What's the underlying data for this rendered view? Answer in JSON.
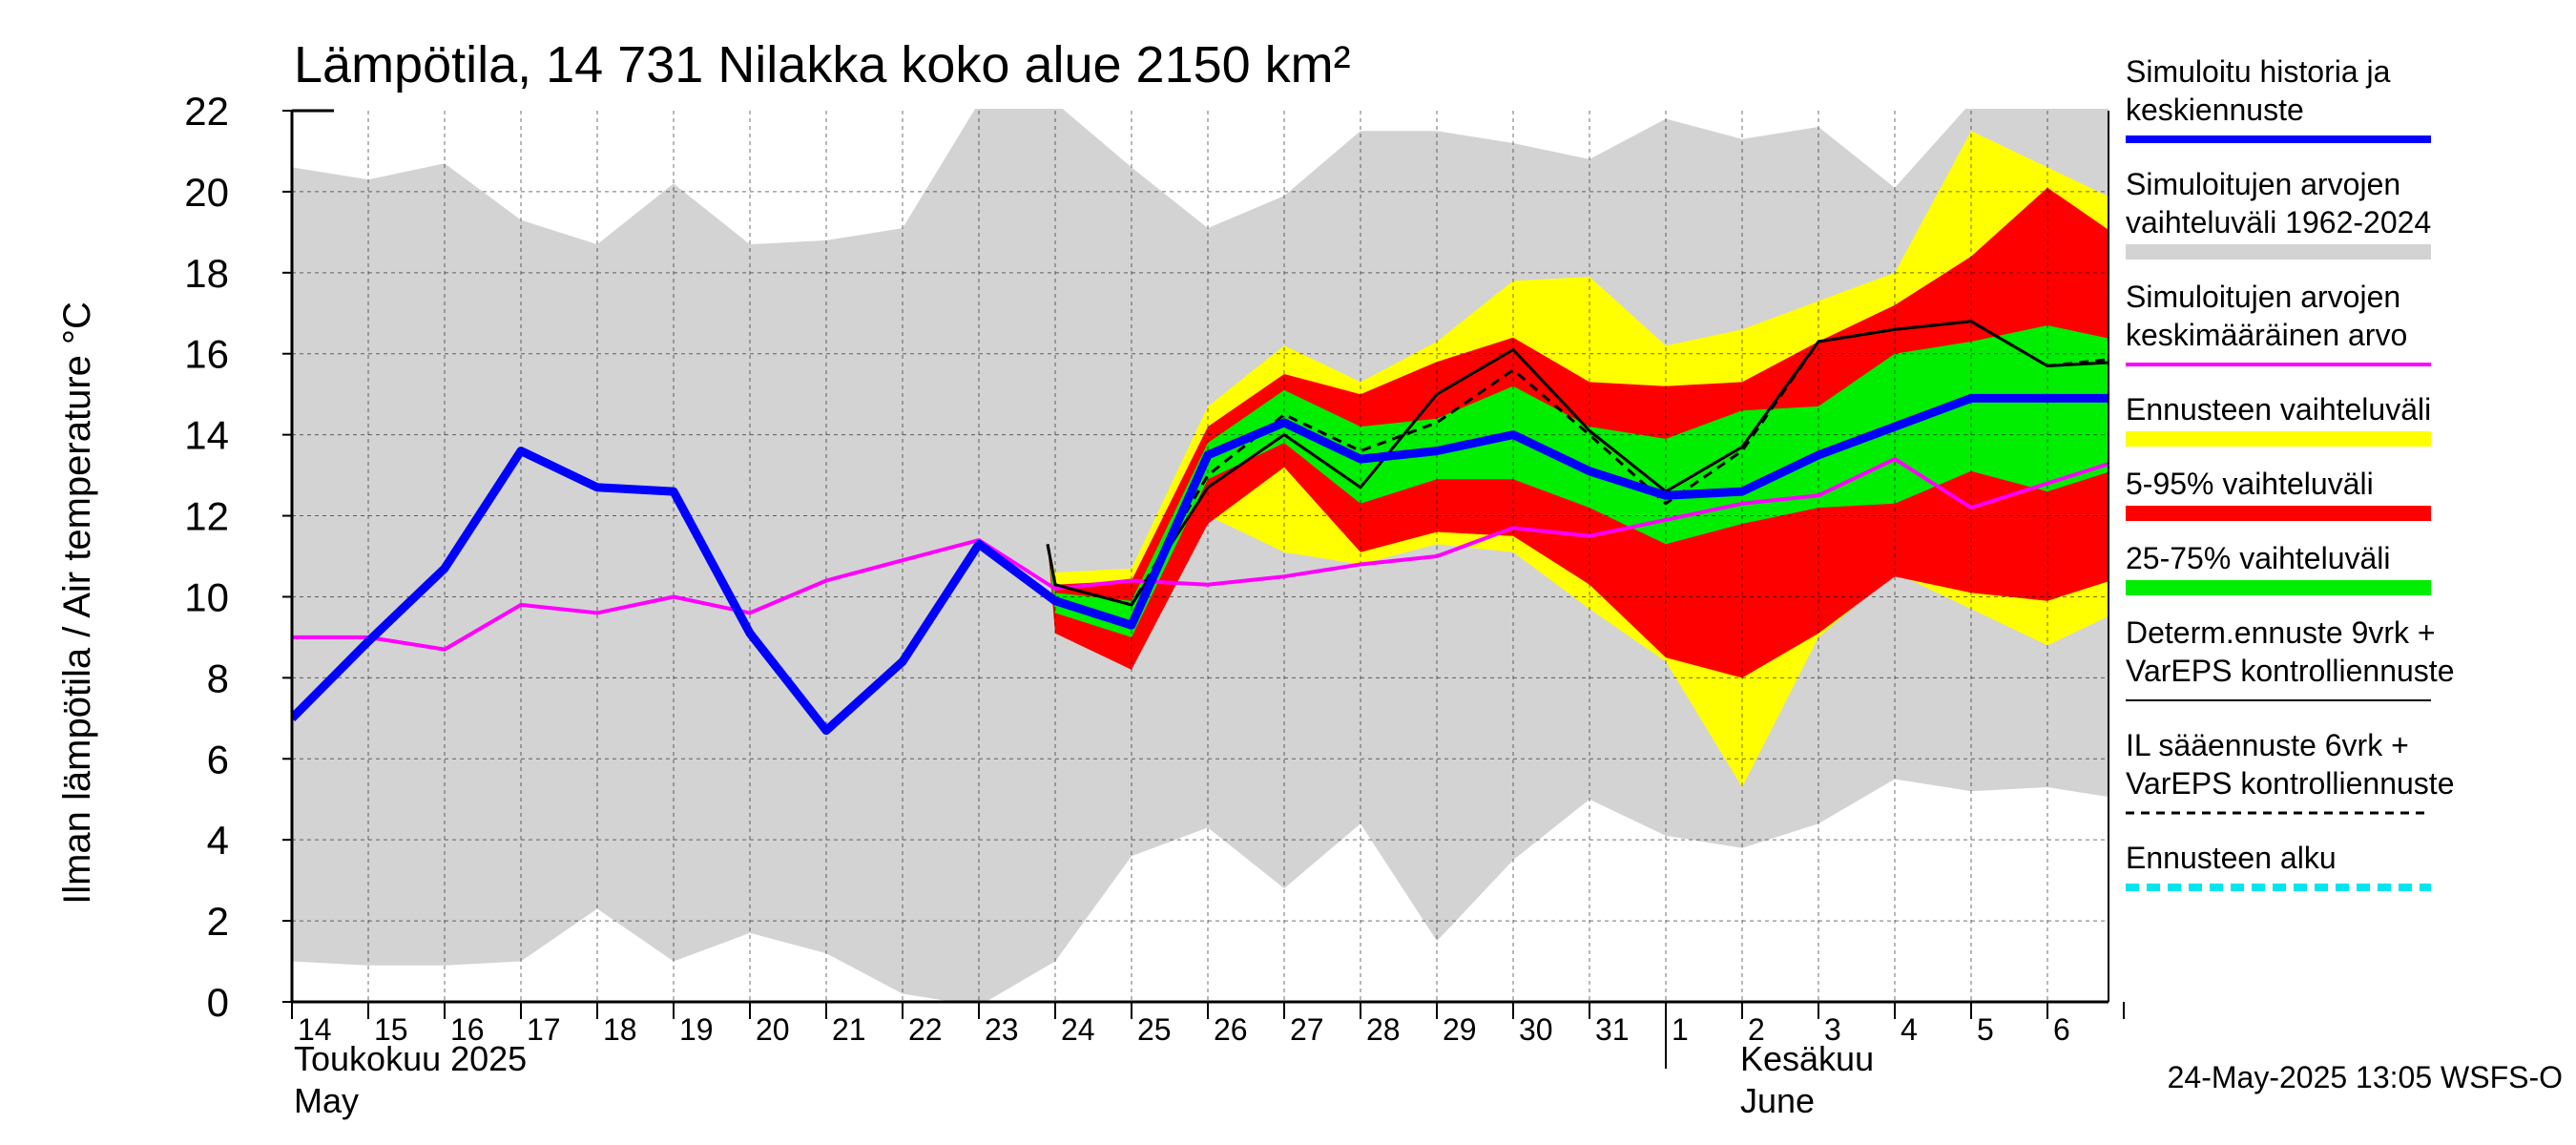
{
  "chart_data": {
    "type": "line",
    "title": "Lämpötila, 14 731 Nilakka koko alue 2150 km²",
    "ylabel": "Ilman lämpötila / Air temperature   °C",
    "ylim": [
      0,
      22
    ],
    "yticks": [
      0,
      2,
      4,
      6,
      8,
      10,
      12,
      14,
      16,
      18,
      20,
      22
    ],
    "x_days": [
      "14",
      "15",
      "16",
      "17",
      "18",
      "19",
      "20",
      "21",
      "22",
      "23",
      "24",
      "25",
      "26",
      "27",
      "28",
      "29",
      "30",
      "31",
      "1",
      "2",
      "3",
      "4",
      "5",
      "6"
    ],
    "x_start_date": "2025-05-14",
    "months": [
      {
        "fi": "Toukokuu  2025",
        "en": "May"
      },
      {
        "fi": "Kesäkuu",
        "en": "June"
      }
    ],
    "forecast_start_day": 23.95,
    "grid": true,
    "legend_position": "right",
    "series": [
      {
        "name": "Simuloitujen arvojen vaihteluväli 1962-2024",
        "kind": "band",
        "color": "#d3d3d3",
        "x": [
          0,
          1,
          2,
          3,
          4,
          5,
          6,
          7,
          8,
          9,
          10,
          11,
          12,
          13,
          14,
          15,
          16,
          17,
          18,
          19,
          20,
          21,
          22,
          23,
          24
        ],
        "lower": [
          1.0,
          0.9,
          0.9,
          1.0,
          2.3,
          1.0,
          1.7,
          1.2,
          0.2,
          -0.1,
          1.0,
          3.6,
          4.3,
          2.8,
          4.4,
          1.5,
          3.5,
          5.0,
          4.1,
          3.8,
          4.4,
          5.5,
          5.2,
          5.3,
          5.0
        ],
        "upper": [
          20.6,
          20.3,
          20.7,
          19.3,
          18.7,
          20.2,
          18.7,
          18.8,
          19.1,
          22.2,
          22.2,
          20.6,
          19.1,
          19.9,
          21.5,
          21.5,
          21.2,
          20.8,
          21.8,
          21.3,
          21.6,
          20.1,
          22.2,
          22.2,
          22.2
        ]
      },
      {
        "name": "Ennusteen vaihteluväli",
        "kind": "band",
        "color": "#ffff00",
        "x": [
          9.9,
          10,
          11,
          12,
          13,
          14,
          15,
          16,
          17,
          18,
          19,
          20,
          21,
          22,
          23,
          24
        ],
        "lower": [
          11.3,
          9.2,
          8.3,
          12.0,
          11.1,
          10.8,
          11.3,
          11.1,
          9.7,
          8.4,
          5.3,
          9.0,
          10.6,
          9.7,
          8.8,
          9.7
        ],
        "upper": [
          11.3,
          10.6,
          10.7,
          14.7,
          16.2,
          15.3,
          16.3,
          17.8,
          17.9,
          16.2,
          16.6,
          17.3,
          18.0,
          21.5,
          20.6,
          19.7
        ]
      },
      {
        "name": "5-95% vaihteluväli",
        "kind": "band",
        "color": "#ff0000",
        "x": [
          9.9,
          10,
          11,
          12,
          13,
          14,
          15,
          16,
          17,
          18,
          19,
          20,
          21,
          22,
          23,
          24
        ],
        "lower": [
          11.3,
          9.1,
          8.2,
          11.8,
          13.2,
          11.1,
          11.6,
          11.5,
          10.3,
          8.5,
          8.0,
          9.1,
          10.5,
          10.1,
          9.9,
          10.5
        ],
        "upper": [
          11.3,
          10.3,
          10.4,
          14.2,
          15.5,
          15.0,
          15.8,
          16.4,
          15.3,
          15.2,
          15.3,
          16.3,
          17.2,
          18.4,
          20.1,
          18.8
        ]
      },
      {
        "name": "25-75% vaihteluväli",
        "kind": "band",
        "color": "#00ee00",
        "x": [
          9.9,
          10,
          11,
          12,
          13,
          14,
          15,
          16,
          17,
          18,
          19,
          20,
          21,
          22,
          23,
          24
        ],
        "lower": [
          11.3,
          9.6,
          9.0,
          12.9,
          13.8,
          12.3,
          12.9,
          12.9,
          12.2,
          11.3,
          11.8,
          12.2,
          12.3,
          13.1,
          12.6,
          13.2
        ],
        "upper": [
          11.3,
          10.1,
          9.9,
          13.8,
          15.1,
          14.2,
          14.4,
          15.2,
          14.2,
          13.9,
          14.6,
          14.7,
          16.0,
          16.3,
          16.7,
          16.3
        ]
      },
      {
        "name": "Simuloitujen arvojen keskimääräinen arvo",
        "kind": "line",
        "color": "#ff00ff",
        "width": 4,
        "x": [
          0,
          1,
          2,
          3,
          4,
          5,
          6,
          7,
          8,
          9,
          10,
          11,
          12,
          13,
          14,
          15,
          16,
          17,
          18,
          19,
          20,
          21,
          22,
          23,
          24
        ],
        "y": [
          9.0,
          9.0,
          8.7,
          9.8,
          9.6,
          10.0,
          9.6,
          10.4,
          10.9,
          11.4,
          10.2,
          10.4,
          10.3,
          10.5,
          10.8,
          11.0,
          11.7,
          11.5,
          11.9,
          12.3,
          12.5,
          13.4,
          12.2,
          12.8,
          13.4
        ]
      },
      {
        "name": "IL sääennuste 6vrk + VarEPS kontrolliennuste",
        "kind": "line",
        "color": "#000000",
        "width": 3,
        "dash": "10,7",
        "x": [
          9.9,
          10,
          11,
          12,
          13,
          14,
          15,
          16,
          17,
          18,
          19,
          20,
          21,
          22,
          23,
          24
        ],
        "y": [
          11.3,
          10.3,
          9.8,
          13.0,
          14.5,
          13.6,
          14.3,
          15.6,
          14.0,
          12.3,
          13.6,
          16.3,
          16.6,
          16.8,
          15.7,
          15.9
        ]
      },
      {
        "name": "Determ.ennuste 9vrk + VarEPS kontrolliennuste",
        "kind": "line",
        "color": "#000000",
        "width": 3,
        "x": [
          9.9,
          10,
          11,
          12,
          13,
          14,
          15,
          16,
          17,
          18,
          19,
          20,
          21,
          22,
          23,
          24
        ],
        "y": [
          11.3,
          10.3,
          9.8,
          12.7,
          14.0,
          12.7,
          15.0,
          16.1,
          14.1,
          12.6,
          13.7,
          16.3,
          16.6,
          16.8,
          15.7,
          15.8
        ]
      },
      {
        "name": "Simuloitu historia ja keskiennuste",
        "kind": "line",
        "color": "#0000ff",
        "width": 9,
        "x": [
          0,
          1,
          2,
          3,
          4,
          5,
          6,
          7,
          8,
          9,
          10,
          11,
          12,
          13,
          14,
          15,
          16,
          17,
          18,
          19,
          20,
          21,
          22,
          23,
          24
        ],
        "y": [
          7.0,
          8.9,
          10.7,
          13.6,
          12.7,
          12.6,
          9.1,
          6.7,
          8.4,
          11.3,
          9.9,
          9.3,
          13.5,
          14.3,
          13.4,
          13.6,
          14.0,
          13.1,
          12.5,
          12.6,
          13.5,
          14.2,
          14.9,
          14.9,
          14.9
        ]
      }
    ]
  },
  "legend": [
    {
      "lines": [
        "Simuloitu historia ja",
        "keskiennuste"
      ],
      "color": "#0000ff",
      "style": "thick"
    },
    {
      "lines": [
        "Simuloitujen arvojen",
        "vaihteluväli 1962-2024"
      ],
      "color": "#d3d3d3",
      "style": "band"
    },
    {
      "lines": [
        "Simuloitujen arvojen",
        "keskimääräinen arvo"
      ],
      "color": "#ff00ff",
      "style": "thin"
    },
    {
      "lines": [
        "Ennusteen vaihteluväli"
      ],
      "color": "#ffff00",
      "style": "band"
    },
    {
      "lines": [
        "5-95% vaihteluväli"
      ],
      "color": "#ff0000",
      "style": "band"
    },
    {
      "lines": [
        "25-75% vaihteluväli"
      ],
      "color": "#00ee00",
      "style": "band"
    },
    {
      "lines": [
        "Determ.ennuste 9vrk +",
        "VarEPS kontrolliennuste"
      ],
      "color": "#000000",
      "style": "solid"
    },
    {
      "lines": [
        "IL sääennuste 6vrk  +",
        "  VarEPS kontrolliennuste"
      ],
      "color": "#000000",
      "style": "dashed"
    },
    {
      "lines": [
        "Ennusteen alku"
      ],
      "color": "#00e5ee",
      "style": "dotted"
    }
  ],
  "timestamp": "24-May-2025 13:05 WSFS-O"
}
